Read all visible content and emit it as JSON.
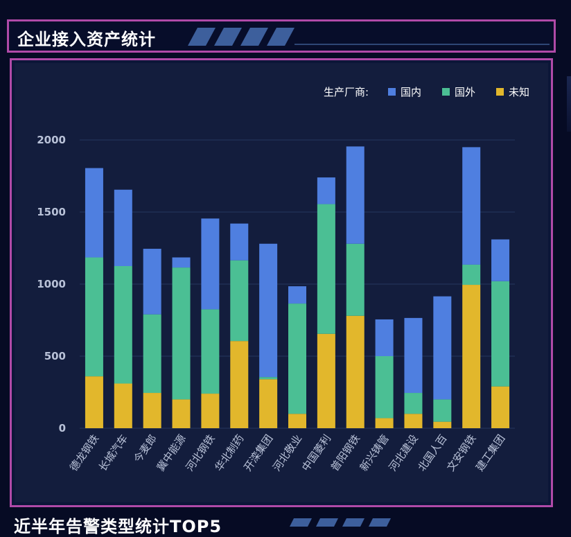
{
  "header": {
    "title": "企业接入资产统计"
  },
  "next_section": {
    "title": "近半年告警类型统计TOP5"
  },
  "colors": {
    "domestic": "#4f7fe0",
    "foreign": "#4bbf94",
    "unknown": "#e2b72c",
    "grid": "#26365e",
    "axis_text": "#b9c2d8",
    "border": "#b04aa8"
  },
  "chart_data": {
    "type": "bar",
    "stacked": true,
    "legend_title": "生产厂商:",
    "legend_position": "top-right",
    "categories": [
      "德龙钢铁",
      "长城汽车",
      "今麦郎",
      "冀中能源",
      "河北钢铁",
      "华北制药",
      "开滦集团",
      "河北敬业",
      "中国菱利",
      "普阳钢铁",
      "新兴铸管",
      "河北建设",
      "北国人百",
      "文安钢铁",
      "建工集团"
    ],
    "series": [
      {
        "name": "未知",
        "values": [
          360,
          310,
          245,
          200,
          240,
          605,
          340,
          100,
          655,
          780,
          70,
          100,
          45,
          995,
          290
        ]
      },
      {
        "name": "国外",
        "values": [
          825,
          815,
          545,
          915,
          585,
          560,
          15,
          765,
          900,
          500,
          430,
          145,
          155,
          140,
          730
        ]
      },
      {
        "name": "国内",
        "values": [
          620,
          530,
          455,
          70,
          630,
          255,
          925,
          120,
          185,
          675,
          255,
          520,
          715,
          815,
          290
        ]
      }
    ],
    "legend_order": [
      "国内",
      "国外",
      "未知"
    ],
    "y_ticks": [
      0,
      500,
      1000,
      1500,
      2000
    ],
    "ylim": [
      0,
      2000
    ],
    "grid": true
  }
}
